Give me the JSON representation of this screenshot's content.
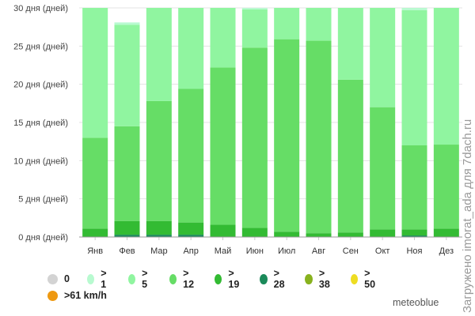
{
  "chart_data": {
    "type": "bar",
    "stacked": true,
    "title": "",
    "xlabel": "",
    "ylabel": "",
    "ylim": [
      0,
      30
    ],
    "yticks": [
      0,
      5,
      10,
      15,
      20,
      25,
      30
    ],
    "ytick_labels": [
      "0 дня (дней)",
      "5 дня (дней)",
      "10 дня (дней)",
      "15 дня (дней)",
      "20 дня (дней)",
      "25 дня (дней)",
      "30 дня (дней)"
    ],
    "categories": [
      "Янв",
      "Фев",
      "Мар",
      "Апр",
      "Май",
      "Июн",
      "Июл",
      "Авг",
      "Сен",
      "Окт",
      "Ноя",
      "Дез"
    ],
    "grid": true,
    "series": [
      {
        "name": ">28",
        "color": "#1b8a5a",
        "values": [
          0,
          0.3,
          0.3,
          0.3,
          0,
          0,
          0,
          0,
          0,
          0,
          0.2,
          0
        ]
      },
      {
        "name": ">19",
        "color": "#33bb33",
        "values": [
          1.1,
          1.8,
          1.8,
          1.6,
          1.6,
          1.2,
          0.7,
          0.5,
          0.6,
          1.0,
          0.8,
          1.1
        ]
      },
      {
        "name": ">12",
        "color": "#66dd66",
        "values": [
          11.9,
          12.4,
          15.7,
          17.5,
          20.6,
          23.6,
          25.2,
          25.2,
          20.0,
          16.0,
          11.0,
          11.0
        ]
      },
      {
        "name": ">5",
        "color": "#90f5a0",
        "values": [
          17.0,
          13.3,
          12.2,
          10.6,
          7.8,
          5.0,
          4.1,
          4.3,
          9.4,
          13.0,
          17.7,
          17.9
        ]
      },
      {
        "name": ">1",
        "color": "#b8fad0",
        "values": [
          0,
          0.3,
          0,
          0,
          0,
          0.2,
          0,
          0,
          0,
          0,
          0.3,
          0
        ]
      }
    ]
  },
  "legend": {
    "row1": [
      {
        "label": "0",
        "color": "#d3d3d3"
      },
      {
        "label": "> 1",
        "color": "#b8fad0"
      },
      {
        "label": "> 5",
        "color": "#90f5a0"
      },
      {
        "label": "> 12",
        "color": "#66dd66"
      },
      {
        "label": "> 19",
        "color": "#33bb33"
      },
      {
        "label": "> 28",
        "color": "#1b8a5a"
      },
      {
        "label": "> 38",
        "color": "#88b21e"
      },
      {
        "label": "> 50",
        "color": "#eedd22"
      }
    ],
    "row2": [
      {
        "label": ">61 km/h",
        "color": "#ee9911"
      }
    ]
  },
  "brand": "meteoblue",
  "watermark": "Загружено imorat_ada для 7dach.ru"
}
